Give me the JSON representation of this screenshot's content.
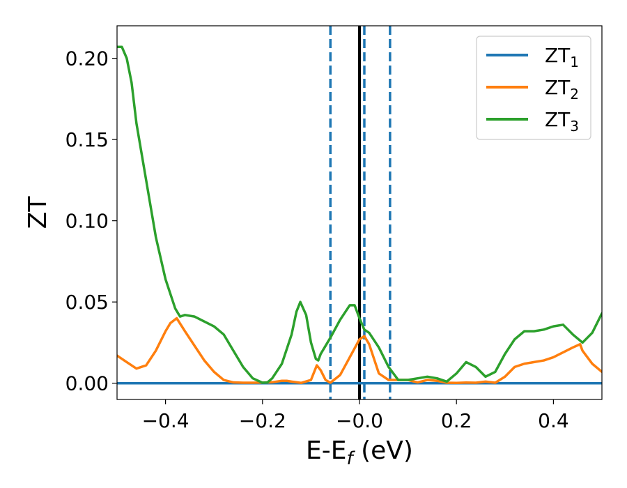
{
  "chart_data": {
    "type": "line",
    "xlabel": "E-E",
    "xlabel_sub": "f",
    "xlabel_unit": " (eV)",
    "ylabel": "ZT",
    "xlim": [
      -0.5,
      0.5
    ],
    "ylim": [
      -0.01,
      0.22
    ],
    "grid": false,
    "legend_position": "top-right",
    "x_ticks": [
      -0.4,
      -0.2,
      0.0,
      0.2,
      0.4
    ],
    "x_tick_labels": [
      "−0.4",
      "−0.2",
      "−0.0",
      "0.2",
      "0.4"
    ],
    "y_ticks": [
      0.0,
      0.05,
      0.1,
      0.15,
      0.2
    ],
    "y_tick_labels": [
      "0.00",
      "0.05",
      "0.10",
      "0.15",
      "0.20"
    ],
    "vertical_lines": [
      {
        "x": 0.0,
        "style": "solid",
        "color": "#000000"
      },
      {
        "x": -0.06,
        "style": "dashed",
        "color": "#1f77b4"
      },
      {
        "x": 0.01,
        "style": "dashed",
        "color": "#1f77b4"
      },
      {
        "x": 0.063,
        "style": "dashed",
        "color": "#1f77b4"
      }
    ],
    "series": [
      {
        "name": "ZT",
        "name_sub": "1",
        "color": "#1f77b4",
        "x": [
          -0.5,
          0.5
        ],
        "y": [
          0.0,
          0.0
        ]
      },
      {
        "name": "ZT",
        "name_sub": "2",
        "color": "#ff7f0e",
        "x": [
          -0.5,
          -0.48,
          -0.46,
          -0.44,
          -0.42,
          -0.4,
          -0.39,
          -0.377,
          -0.36,
          -0.34,
          -0.32,
          -0.3,
          -0.28,
          -0.26,
          -0.24,
          -0.22,
          -0.2,
          -0.18,
          -0.16,
          -0.15,
          -0.14,
          -0.12,
          -0.1,
          -0.088,
          -0.08,
          -0.07,
          -0.06,
          -0.04,
          -0.02,
          0.0,
          0.01,
          0.02,
          0.04,
          0.06,
          0.08,
          0.1,
          0.12,
          0.14,
          0.16,
          0.18,
          0.2,
          0.22,
          0.24,
          0.26,
          0.28,
          0.3,
          0.32,
          0.34,
          0.36,
          0.38,
          0.4,
          0.42,
          0.44,
          0.455,
          0.46,
          0.48,
          0.5
        ],
        "y": [
          0.017,
          0.013,
          0.009,
          0.011,
          0.02,
          0.032,
          0.037,
          0.04,
          0.032,
          0.023,
          0.014,
          0.007,
          0.002,
          0.0005,
          0.0003,
          0.0003,
          0.0004,
          0.0006,
          0.0015,
          0.0015,
          0.001,
          0.0002,
          0.002,
          0.011,
          0.008,
          0.002,
          0.0003,
          0.005,
          0.016,
          0.027,
          0.029,
          0.024,
          0.006,
          0.002,
          0.002,
          0.002,
          0.0005,
          0.002,
          0.0015,
          0.0003,
          0.0002,
          0.0004,
          0.0003,
          0.001,
          0.0003,
          0.004,
          0.01,
          0.012,
          0.013,
          0.014,
          0.016,
          0.019,
          0.022,
          0.024,
          0.02,
          0.012,
          0.007
        ]
      },
      {
        "name": "ZT",
        "name_sub": "3",
        "color": "#2ca02c",
        "x": [
          -0.5,
          -0.49,
          -0.48,
          -0.47,
          -0.46,
          -0.44,
          -0.42,
          -0.4,
          -0.38,
          -0.37,
          -0.36,
          -0.34,
          -0.32,
          -0.3,
          -0.28,
          -0.26,
          -0.24,
          -0.22,
          -0.2,
          -0.19,
          -0.18,
          -0.16,
          -0.14,
          -0.13,
          -0.122,
          -0.11,
          -0.1,
          -0.09,
          -0.085,
          -0.08,
          -0.06,
          -0.04,
          -0.02,
          -0.01,
          0.0,
          0.01,
          0.02,
          0.04,
          0.06,
          0.08,
          0.1,
          0.12,
          0.14,
          0.16,
          0.18,
          0.2,
          0.22,
          0.24,
          0.26,
          0.28,
          0.3,
          0.32,
          0.34,
          0.36,
          0.38,
          0.4,
          0.42,
          0.44,
          0.46,
          0.48,
          0.5
        ],
        "y": [
          0.207,
          0.207,
          0.2,
          0.185,
          0.16,
          0.125,
          0.09,
          0.064,
          0.046,
          0.041,
          0.042,
          0.041,
          0.038,
          0.035,
          0.03,
          0.02,
          0.01,
          0.003,
          0.0003,
          0.0005,
          0.003,
          0.012,
          0.03,
          0.044,
          0.05,
          0.042,
          0.025,
          0.015,
          0.014,
          0.018,
          0.028,
          0.039,
          0.048,
          0.048,
          0.04,
          0.033,
          0.031,
          0.022,
          0.01,
          0.002,
          0.002,
          0.003,
          0.004,
          0.003,
          0.001,
          0.006,
          0.013,
          0.01,
          0.004,
          0.007,
          0.018,
          0.027,
          0.032,
          0.032,
          0.033,
          0.035,
          0.036,
          0.03,
          0.025,
          0.031,
          0.043
        ]
      }
    ]
  }
}
